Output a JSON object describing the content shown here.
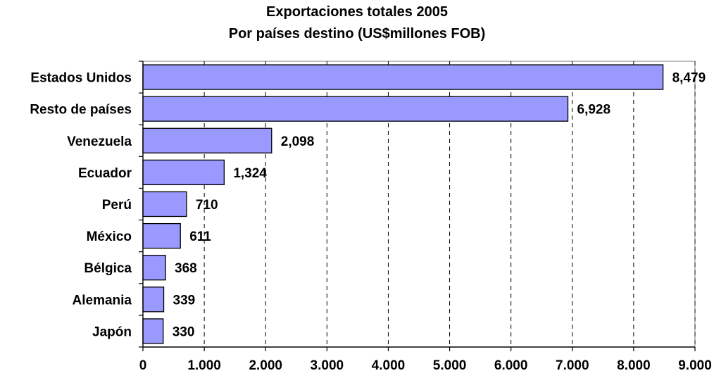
{
  "chart_data": {
    "type": "bar",
    "orientation": "horizontal",
    "title": "Exportaciones totales 2005",
    "subtitle": "Por países destino (US$millones FOB)",
    "categories": [
      "Estados Unidos",
      "Resto de países",
      "Venezuela",
      "Ecuador",
      "Perú",
      "México",
      "Bélgica",
      "Alemania",
      "Japón"
    ],
    "values": [
      8479,
      6928,
      2098,
      1324,
      710,
      611,
      368,
      339,
      330
    ],
    "value_labels": [
      "8,479",
      "6,928",
      "2,098",
      "1,324",
      "710",
      "611",
      "368",
      "339",
      "330"
    ],
    "xlim": [
      0,
      9000
    ],
    "x_ticks": [
      0,
      1000,
      2000,
      3000,
      4000,
      5000,
      6000,
      7000,
      8000,
      9000
    ],
    "x_tick_labels": [
      "0",
      "1.000",
      "2.000",
      "3.000",
      "4.000",
      "5.000",
      "6.000",
      "7.000",
      "8.000",
      "9.000"
    ],
    "xlabel": "",
    "ylabel": "",
    "grid": "vertical dashed",
    "bar_color": "#9999ff",
    "bar_stroke": "#000000",
    "legend": "none"
  }
}
